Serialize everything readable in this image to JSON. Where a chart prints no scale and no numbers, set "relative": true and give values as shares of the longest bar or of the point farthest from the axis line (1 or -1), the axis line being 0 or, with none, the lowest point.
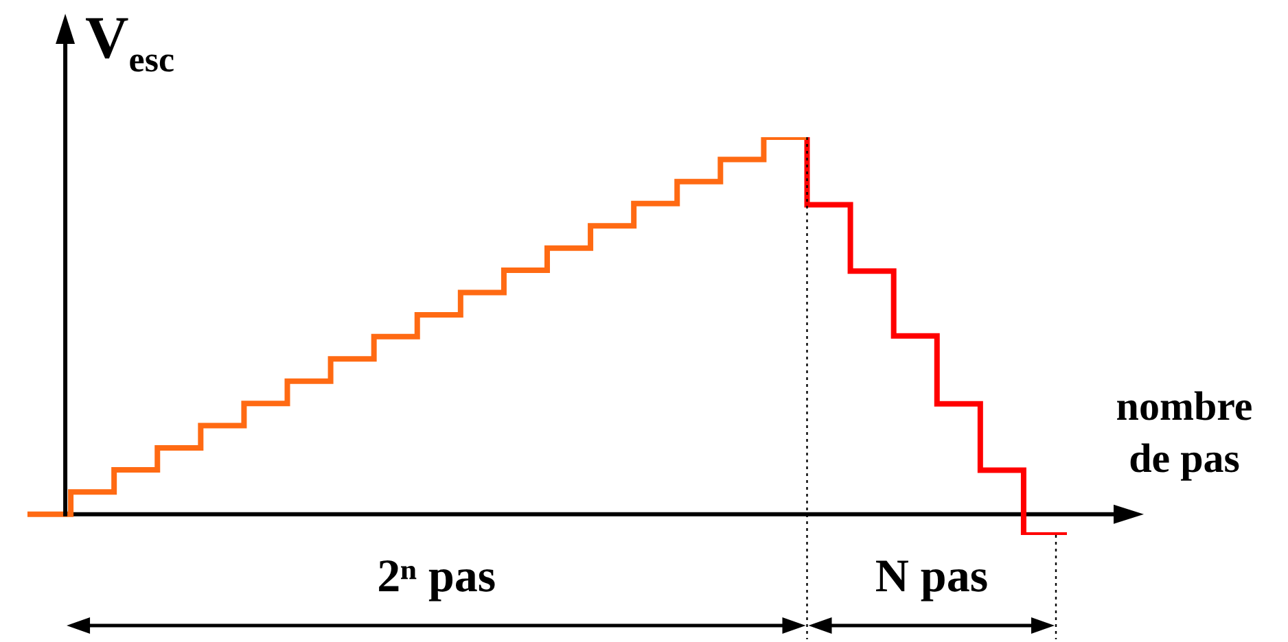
{
  "chart_data": {
    "type": "step",
    "relative": true,
    "grid": false,
    "marker": "none",
    "ylabel": "V$_{esc}$",
    "xlabel": "nombre de pas",
    "annotations": [
      "2ⁿ pas",
      "N pas"
    ],
    "categories": [
      null,
      null,
      null,
      null,
      null,
      null,
      null,
      null,
      null,
      null,
      null,
      null,
      null,
      null,
      null,
      null,
      null,
      null,
      null,
      null,
      null,
      null,
      null,
      null,
      null
    ],
    "series": [
      {
        "color": "#ff6a13",
        "values": [
          0,
          0,
          0.059,
          0.118,
          0.176,
          0.235,
          0.294,
          0.353,
          0.412,
          0.471,
          0.529,
          0.588,
          0.647,
          0.706,
          0.765,
          0.824,
          0.882,
          0.941,
          1,
          null,
          null,
          null,
          null,
          null,
          null
        ]
      },
      {
        "color": "#ff0000",
        "values": [
          null,
          null,
          null,
          null,
          null,
          null,
          null,
          null,
          null,
          null,
          null,
          null,
          null,
          null,
          null,
          null,
          null,
          null,
          1,
          0.821,
          0.645,
          0.473,
          0.293,
          0.117,
          -0.055
        ]
      }
    ]
  }
}
